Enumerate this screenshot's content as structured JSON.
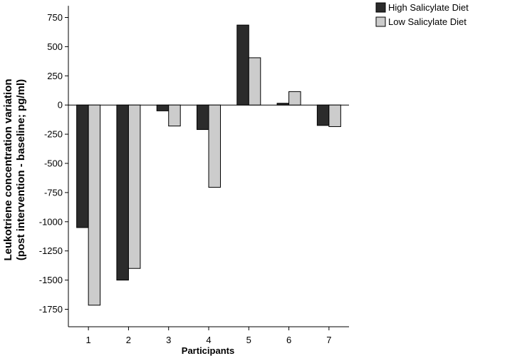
{
  "chart_data": {
    "type": "bar",
    "title": "",
    "xlabel": "Participants",
    "ylabel_line1": "Leukotriene concentration variation",
    "ylabel_line2": "(post intervention - baseline; pg/ml)",
    "categories": [
      "1",
      "2",
      "3",
      "4",
      "5",
      "6",
      "7"
    ],
    "series": [
      {
        "name": "High Salicylate Diet",
        "color": "#2b2b2b",
        "values": [
          -1050,
          -1500,
          -50,
          -210,
          685,
          15,
          -175
        ]
      },
      {
        "name": "Low Salicylate Diet",
        "color": "#cccccc",
        "values": [
          -1715,
          -1400,
          -180,
          -705,
          405,
          115,
          -185
        ]
      }
    ],
    "yticks": [
      750,
      500,
      250,
      0,
      -250,
      -500,
      -750,
      -1000,
      -1250,
      -1500,
      -1750
    ],
    "ytick_labels": [
      "750",
      "500",
      "250",
      "0",
      "-250",
      "-500",
      "-750",
      "-1000",
      "-1250",
      "-1500",
      "-1750"
    ],
    "ylim": [
      -1900,
      850
    ],
    "grid": false,
    "legend_position": "top-right"
  }
}
